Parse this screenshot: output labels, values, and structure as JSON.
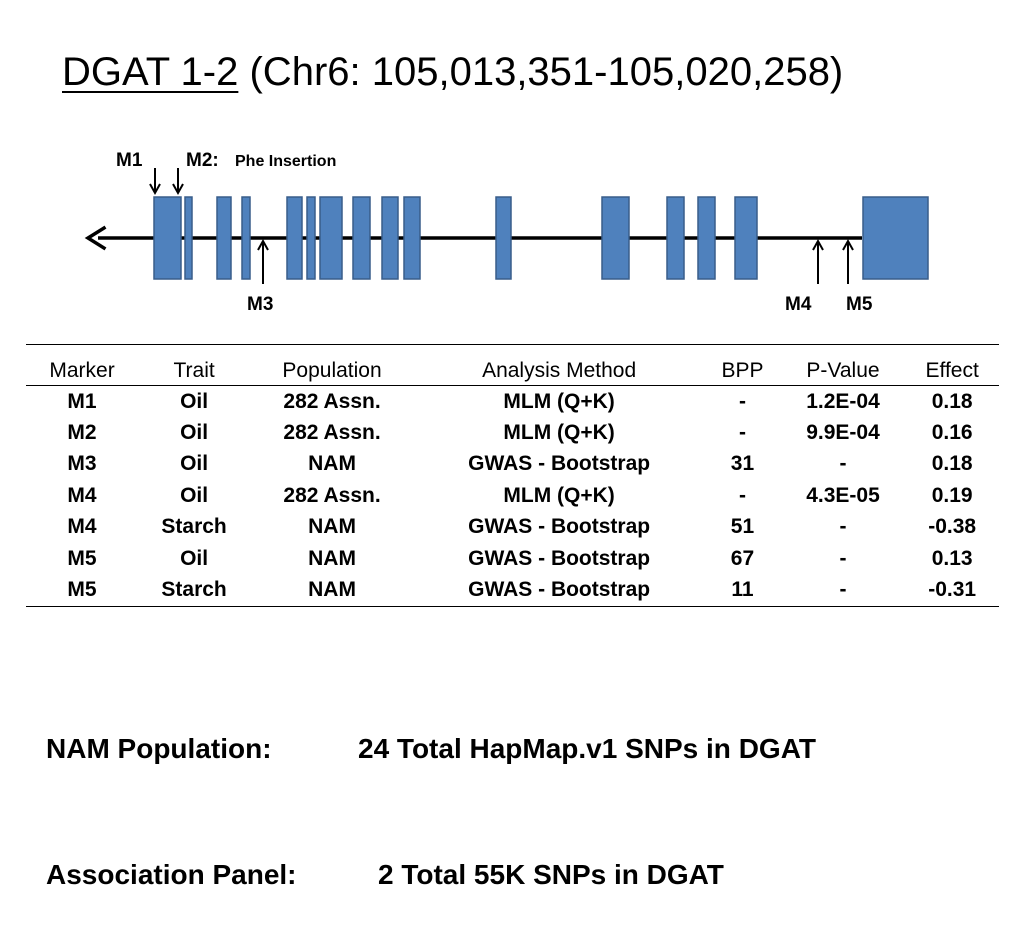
{
  "title": {
    "gene": "DGAT 1-2",
    "coords": "(Chr6: 105,013,351-105,020,258)"
  },
  "markers": {
    "M1": "M1",
    "M2": "M2:",
    "M2_note": "Phe Insertion",
    "M3": "M3",
    "M4": "M4",
    "M5": "M5"
  },
  "diagram": {
    "exon_color": "#4F81BD",
    "exon_border": "#385D8A"
  },
  "table": {
    "headers": [
      "Marker",
      "Trait",
      "Population",
      "Analysis Method",
      "BPP",
      "P-Value",
      "Effect"
    ],
    "rows": [
      [
        "M1",
        "Oil",
        "282 Assn.",
        "MLM (Q+K)",
        "-",
        "1.2E-04",
        "0.18"
      ],
      [
        "M2",
        "Oil",
        "282 Assn.",
        "MLM (Q+K)",
        "-",
        "9.9E-04",
        "0.16"
      ],
      [
        "M3",
        "Oil",
        "NAM",
        "GWAS - Bootstrap",
        "31",
        "-",
        "0.18"
      ],
      [
        "M4",
        "Oil",
        "282 Assn.",
        "MLM (Q+K)",
        "-",
        "4.3E-05",
        "0.19"
      ],
      [
        "M4",
        "Starch",
        "NAM",
        "GWAS - Bootstrap",
        "51",
        "-",
        "-0.38"
      ],
      [
        "M5",
        "Oil",
        "NAM",
        "GWAS - Bootstrap",
        "67",
        "-",
        "0.13"
      ],
      [
        "M5",
        "Starch",
        "NAM",
        "GWAS - Bootstrap",
        "11",
        "-",
        "-0.31"
      ]
    ]
  },
  "footer": {
    "nam_label": "NAM Population:",
    "nam_value": "24 Total HapMap.v1 SNPs in DGAT",
    "assoc_label": "Association Panel:",
    "assoc_value": "2 Total 55K SNPs in DGAT"
  }
}
